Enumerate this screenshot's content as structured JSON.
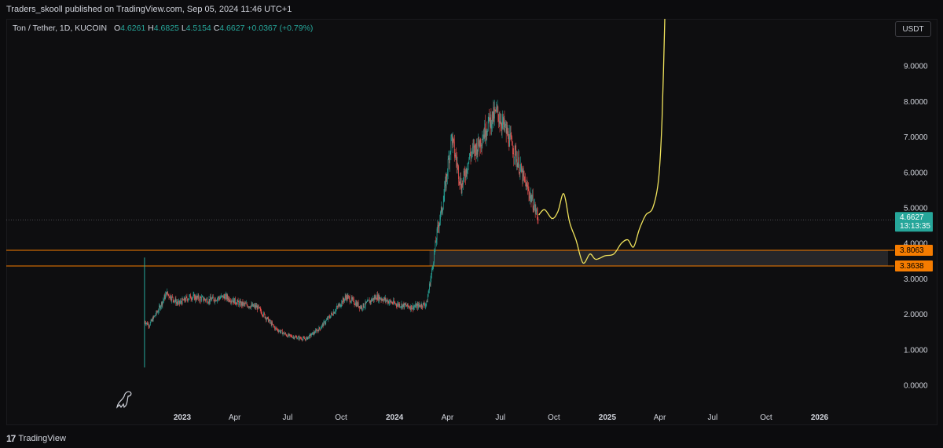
{
  "header": {
    "publisher_text": "Traders_skooll published on TradingView.com, Sep 05, 2024 11:46 UTC+1"
  },
  "legend": {
    "symbol": "Ton / Tether, 1D, KUCOIN",
    "open_label": "O",
    "open": "4.6261",
    "high_label": "H",
    "high": "4.6825",
    "low_label": "L",
    "low": "4.5154",
    "close_label": "C",
    "close": "4.6627",
    "change": "+0.0367 (+0.79%)"
  },
  "currency": "USDT",
  "footer": {
    "brand": "TradingView",
    "logo_text": "17"
  },
  "colors": {
    "up": "#26a69a",
    "down": "#ef5350",
    "projection": "#f0e35c",
    "level": "#f57c00",
    "price_badge": "#26a69a"
  },
  "badges": {
    "last_price": "4.6627",
    "countdown": "13:13:35",
    "level_upper": "3.8063",
    "level_lower": "3.3638"
  },
  "chart_data": {
    "type": "candlestick",
    "title": "Ton / Tether, 1D, KUCOIN",
    "ylim": [
      -0.5,
      10.5
    ],
    "y_ticks": [
      "0.0000",
      "1.0000",
      "2.0000",
      "3.0000",
      "4.0000",
      "5.0000",
      "6.0000",
      "7.0000",
      "8.0000",
      "9.0000"
    ],
    "x_ticks": [
      {
        "label": "2023",
        "date": "2023-01-01",
        "bold": true
      },
      {
        "label": "Apr",
        "date": "2023-04-01",
        "bold": false
      },
      {
        "label": "Jul",
        "date": "2023-07-01",
        "bold": false
      },
      {
        "label": "Oct",
        "date": "2023-10-01",
        "bold": false
      },
      {
        "label": "2024",
        "date": "2024-01-01",
        "bold": true
      },
      {
        "label": "Apr",
        "date": "2024-04-01",
        "bold": false
      },
      {
        "label": "Jul",
        "date": "2024-07-01",
        "bold": false
      },
      {
        "label": "Oct",
        "date": "2024-10-01",
        "bold": false
      },
      {
        "label": "2025",
        "date": "2025-01-01",
        "bold": true
      },
      {
        "label": "Apr",
        "date": "2025-04-01",
        "bold": false
      },
      {
        "label": "Jul",
        "date": "2025-07-01",
        "bold": false
      },
      {
        "label": "Oct",
        "date": "2025-10-01",
        "bold": false
      },
      {
        "label": "2026",
        "date": "2026-01-01",
        "bold": true
      }
    ],
    "support_zone": {
      "upper": 3.8063,
      "lower": 3.3638,
      "start_date": "2024-03-01"
    },
    "last_price": 4.6627,
    "price_path": [
      {
        "date": "2022-10-28",
        "price": 1.8
      },
      {
        "date": "2022-11-05",
        "price": 1.7
      },
      {
        "date": "2022-11-20",
        "price": 2.1
      },
      {
        "date": "2022-12-05",
        "price": 2.6
      },
      {
        "date": "2022-12-25",
        "price": 2.3
      },
      {
        "date": "2023-01-15",
        "price": 2.5
      },
      {
        "date": "2023-02-15",
        "price": 2.4
      },
      {
        "date": "2023-03-15",
        "price": 2.5
      },
      {
        "date": "2023-04-10",
        "price": 2.3
      },
      {
        "date": "2023-05-10",
        "price": 2.2
      },
      {
        "date": "2023-06-10",
        "price": 1.6
      },
      {
        "date": "2023-07-01",
        "price": 1.4
      },
      {
        "date": "2023-08-01",
        "price": 1.3
      },
      {
        "date": "2023-08-25",
        "price": 1.6
      },
      {
        "date": "2023-09-20",
        "price": 2.1
      },
      {
        "date": "2023-10-10",
        "price": 2.5
      },
      {
        "date": "2023-11-05",
        "price": 2.2
      },
      {
        "date": "2023-12-01",
        "price": 2.5
      },
      {
        "date": "2024-01-01",
        "price": 2.3
      },
      {
        "date": "2024-02-01",
        "price": 2.2
      },
      {
        "date": "2024-02-25",
        "price": 2.3
      },
      {
        "date": "2024-03-05",
        "price": 3.2
      },
      {
        "date": "2024-03-15",
        "price": 4.4
      },
      {
        "date": "2024-03-25",
        "price": 5.2
      },
      {
        "date": "2024-04-08",
        "price": 7.0
      },
      {
        "date": "2024-04-25",
        "price": 5.6
      },
      {
        "date": "2024-05-10",
        "price": 6.5
      },
      {
        "date": "2024-05-25",
        "price": 6.8
      },
      {
        "date": "2024-06-10",
        "price": 7.4
      },
      {
        "date": "2024-06-25",
        "price": 7.7
      },
      {
        "date": "2024-07-10",
        "price": 7.2
      },
      {
        "date": "2024-07-25",
        "price": 6.6
      },
      {
        "date": "2024-08-10",
        "price": 5.8
      },
      {
        "date": "2024-08-25",
        "price": 5.2
      },
      {
        "date": "2024-09-05",
        "price": 4.66
      }
    ],
    "projection_path": [
      {
        "date": "2024-09-05",
        "price": 4.8
      },
      {
        "date": "2024-09-15",
        "price": 4.95
      },
      {
        "date": "2024-09-28",
        "price": 4.7
      },
      {
        "date": "2024-10-08",
        "price": 4.9
      },
      {
        "date": "2024-10-18",
        "price": 5.4
      },
      {
        "date": "2024-10-28",
        "price": 4.6
      },
      {
        "date": "2024-11-08",
        "price": 4.1
      },
      {
        "date": "2024-11-20",
        "price": 3.45
      },
      {
        "date": "2024-12-02",
        "price": 3.7
      },
      {
        "date": "2024-12-12",
        "price": 3.55
      },
      {
        "date": "2024-12-28",
        "price": 3.65
      },
      {
        "date": "2025-01-12",
        "price": 3.7
      },
      {
        "date": "2025-01-25",
        "price": 4.0
      },
      {
        "date": "2025-02-05",
        "price": 4.1
      },
      {
        "date": "2025-02-15",
        "price": 3.9
      },
      {
        "date": "2025-02-25",
        "price": 4.4
      },
      {
        "date": "2025-03-08",
        "price": 4.8
      },
      {
        "date": "2025-03-20",
        "price": 5.0
      },
      {
        "date": "2025-03-30",
        "price": 5.8
      },
      {
        "date": "2025-04-05",
        "price": 7.5
      },
      {
        "date": "2025-04-10",
        "price": 10.5
      }
    ]
  }
}
